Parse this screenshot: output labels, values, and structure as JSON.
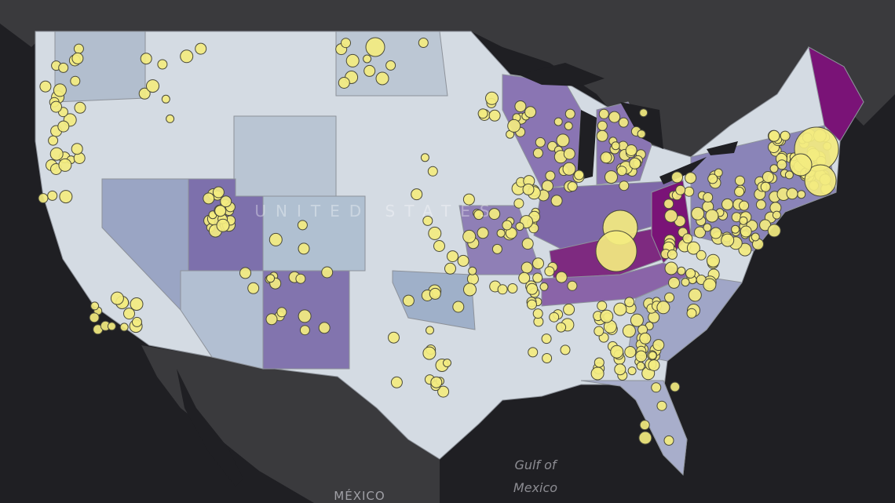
{
  "map": {
    "country_label": "UNITED STATES",
    "water_label": [
      "Gulf of",
      "Mexico"
    ],
    "neighbor_label": "MÉXICO"
  }
}
